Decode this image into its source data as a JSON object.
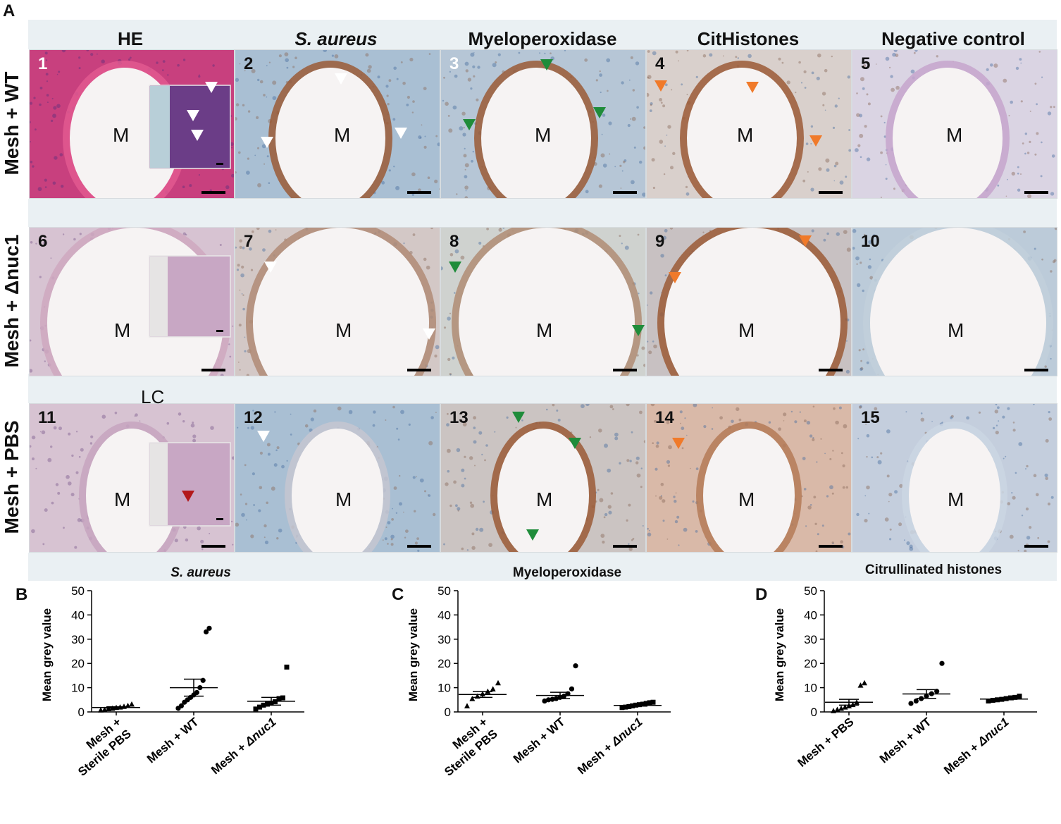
{
  "panel_letters": {
    "a": "A",
    "b": "B",
    "c": "C",
    "d": "D"
  },
  "columns": [
    "HE",
    "S. aureus",
    "Myeloperoxidase",
    "CitHistones",
    "Negative control"
  ],
  "rows": [
    {
      "label": "Mesh + WT",
      "numbers": [
        "1",
        "2",
        "3",
        "4",
        "5"
      ]
    },
    {
      "label": "Mesh + Δnuc1",
      "numbers": [
        "6",
        "7",
        "8",
        "9",
        "10"
      ]
    },
    {
      "label": "Mesh + PBS",
      "numbers": [
        "11",
        "12",
        "13",
        "14",
        "15"
      ]
    }
  ],
  "mesh_label": "M",
  "lc_label": "LC",
  "colors": {
    "he_bg": "#c8407e",
    "he_light": "#d7c3d2",
    "saureus_bg": "#a9bfd3",
    "mpo_bg": "#b6c6d6",
    "cit_bg": "#d9d0cc",
    "neg_bg": "#dad4e3",
    "brown": "#9b5a36",
    "arrow_white": "#ffffff",
    "arrow_green": "#1f8c3a",
    "arrow_orange": "#f07a2a",
    "arrow_red": "#b3191b"
  },
  "chart_data": [
    {
      "panel": "B",
      "type": "scatter",
      "title": "S. aureus",
      "ylabel": "Mean grey value",
      "ylim": [
        0,
        50
      ],
      "yticks": [
        "0",
        "10",
        "20",
        "30",
        "40",
        "50"
      ],
      "categories": [
        {
          "lines": [
            "Mesh +",
            "Sterile PBS"
          ],
          "marker": "triangle"
        },
        {
          "lines": [
            "Mesh + WT"
          ],
          "marker": "circle"
        },
        {
          "lines": [
            "Mesh + Δnuc1"
          ],
          "marker": "square"
        }
      ],
      "series": [
        {
          "mean": 1.8,
          "sem": 0.3,
          "values": [
            0.8,
            1.0,
            1.3,
            1.5,
            1.8,
            2.0,
            2.3,
            2.6,
            3.2
          ]
        },
        {
          "mean": 10,
          "sem": 3.5,
          "values": [
            1.5,
            2.5,
            4,
            5,
            6,
            7,
            8,
            10,
            13,
            33,
            34.5
          ]
        },
        {
          "mean": 4.4,
          "sem": 1.6,
          "values": [
            1.2,
            2,
            2.8,
            3.2,
            3.6,
            4.2,
            5.5,
            5.8,
            18.5
          ]
        }
      ]
    },
    {
      "panel": "C",
      "type": "scatter",
      "title": "Myeloperoxidase",
      "ylabel": "Mean grey value",
      "ylim": [
        0,
        50
      ],
      "yticks": [
        "0",
        "10",
        "20",
        "30",
        "40",
        "50"
      ],
      "categories": [
        {
          "lines": [
            "Mesh +",
            "Sterile PBS"
          ],
          "marker": "triangle"
        },
        {
          "lines": [
            "Mesh + WT"
          ],
          "marker": "circle"
        },
        {
          "lines": [
            "Mesh + Δnuc1"
          ],
          "marker": "square"
        }
      ],
      "series": [
        {
          "mean": 7.2,
          "sem": 1.2,
          "values": [
            2.5,
            5.5,
            6.5,
            7.5,
            8.5,
            9.5,
            12
          ]
        },
        {
          "mean": 6.8,
          "sem": 1.3,
          "values": [
            4.5,
            5,
            5.2,
            5.5,
            6,
            6.5,
            7.5,
            9.5,
            19
          ]
        },
        {
          "mean": 2.7,
          "sem": 0.3,
          "values": [
            1.8,
            2,
            2.2,
            2.5,
            2.8,
            3,
            3.2,
            3.5,
            3.8,
            4
          ]
        }
      ]
    },
    {
      "panel": "D",
      "type": "scatter",
      "title": "Citrullinated histones",
      "ylabel": "Mean grey value",
      "ylim": [
        0,
        50
      ],
      "yticks": [
        "0",
        "10",
        "20",
        "30",
        "40",
        "50"
      ],
      "categories": [
        {
          "lines": [
            "Mesh + PBS"
          ],
          "marker": "triangle"
        },
        {
          "lines": [
            "Mesh + WT"
          ],
          "marker": "circle"
        },
        {
          "lines": [
            "Mesh + Δnuc1"
          ],
          "marker": "square"
        }
      ],
      "series": [
        {
          "mean": 4,
          "sem": 1.2,
          "values": [
            0.5,
            1,
            1.5,
            2,
            2.5,
            3,
            4,
            11,
            12
          ]
        },
        {
          "mean": 7.4,
          "sem": 1.8,
          "values": [
            3.5,
            4.5,
            5.5,
            6.5,
            7.5,
            8.5,
            20
          ]
        },
        {
          "mean": 5.3,
          "sem": 0.3,
          "values": [
            4.5,
            4.8,
            5,
            5.2,
            5.5,
            5.8,
            6,
            6.5
          ]
        }
      ]
    }
  ]
}
